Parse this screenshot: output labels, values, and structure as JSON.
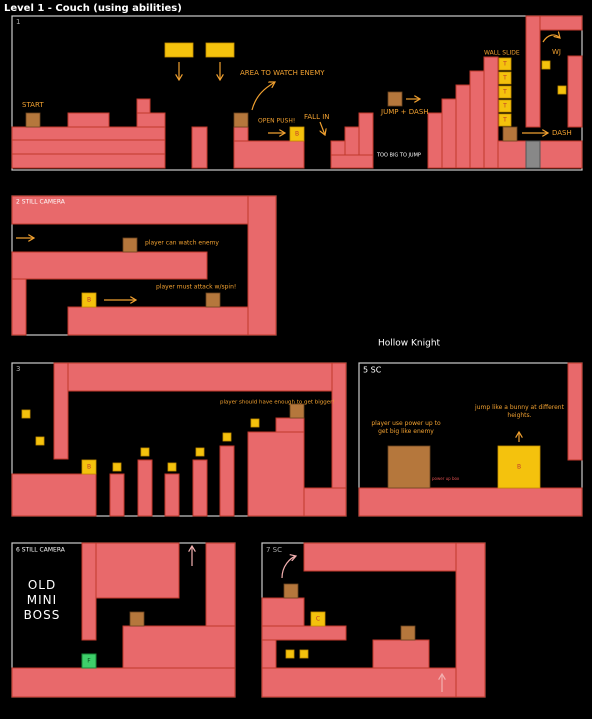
{
  "title": "Level 1 - Couch (using abilities)",
  "side_note": "Hollow Knight",
  "panels": [
    {
      "label": "1",
      "notes": [
        "START",
        "AREA TO WATCH ENEMY",
        "OPEN PUSH!",
        "FALL IN",
        "JUMP + DASH",
        "TOO BIG TO JUMP",
        "WALL SLIDE",
        "WJ",
        "DASH"
      ],
      "tags": [
        "B",
        "T",
        "T",
        "T",
        "T",
        "T"
      ]
    },
    {
      "label": "2 STILL CAMERA",
      "notes": [
        "player can watch enemy",
        "player must attack w/spin!"
      ],
      "tags": [
        "B"
      ]
    },
    {
      "label": "3",
      "notes": [
        "player should have enough to get bigger!"
      ],
      "tags": [
        "B"
      ]
    },
    {
      "label": "5 SC",
      "notes": [
        "player use power up to get big like enemy",
        "power up box",
        "jump like a bunny at different heights."
      ],
      "tags": [
        "B"
      ]
    },
    {
      "label": "6 STILL CAMERA",
      "notes": [
        "OLD MINI BOSS"
      ],
      "tags": [
        "F"
      ]
    },
    {
      "label": "7 SC",
      "notes": [],
      "tags": [
        "C"
      ]
    }
  ]
}
